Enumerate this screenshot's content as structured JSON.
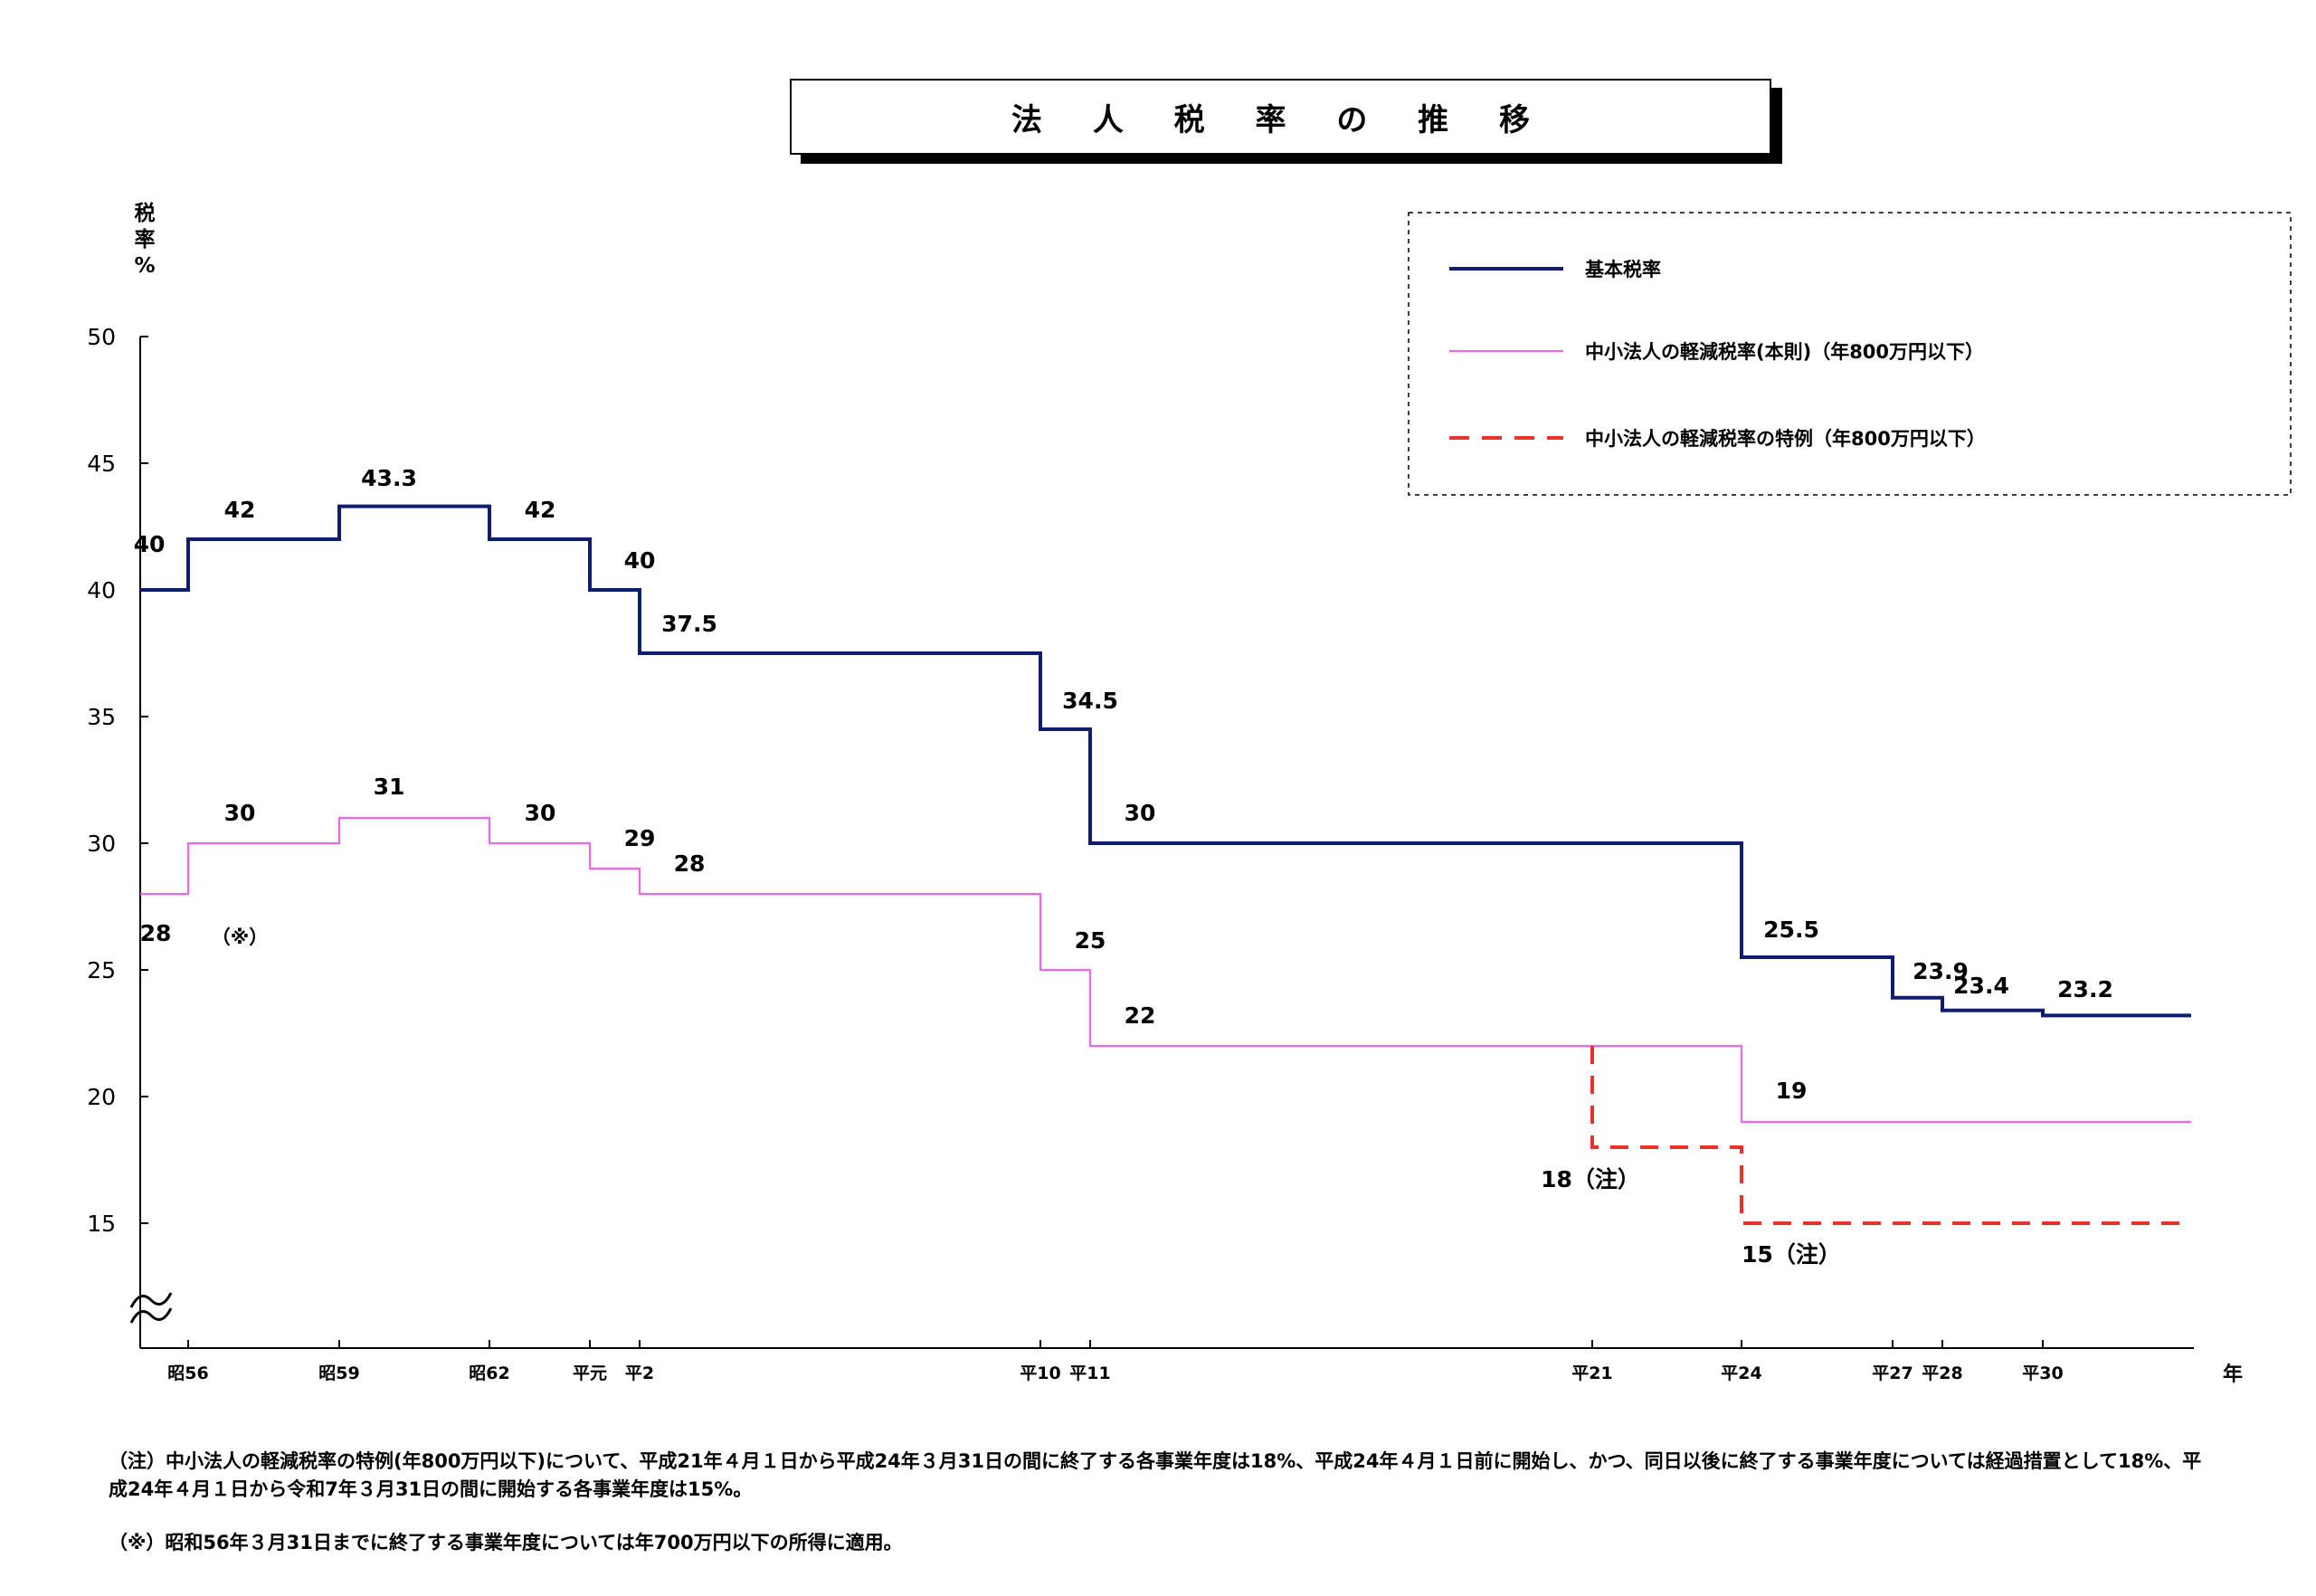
{
  "title": "法 人 税 率 の 推 移",
  "chart_data": {
    "type": "line",
    "step": true,
    "ylabel": "税率%",
    "xlabel": "年",
    "ylim": [
      10,
      50
    ],
    "y_ticks": [
      "50",
      "45",
      "40",
      "35",
      "30",
      "25",
      "20",
      "15"
    ],
    "y_axis_break": true,
    "categories": [
      "昭56",
      "昭59",
      "昭62",
      "平元",
      "平2",
      "平10",
      "平11",
      "平21",
      "平24",
      "平27",
      "平28",
      "平30"
    ],
    "series": [
      {
        "name": "基本税率",
        "color": "#101c6e",
        "style": "solid",
        "points": [
          [
            "",
            40
          ],
          [
            "昭56",
            42
          ],
          [
            "昭59",
            43.3
          ],
          [
            "昭62",
            42
          ],
          [
            "平元",
            40
          ],
          [
            "平2",
            37.5
          ],
          [
            "平10",
            34.5
          ],
          [
            "平11",
            30
          ],
          [
            "平24",
            25.5
          ],
          [
            "平27",
            23.9
          ],
          [
            "平28",
            23.4
          ],
          [
            "平30",
            23.2
          ],
          [
            "",
            23.2
          ]
        ],
        "labels": [
          "40",
          "42",
          "43.3",
          "42",
          "40",
          "37.5",
          "34.5",
          "30",
          "25.5",
          "23.9",
          "23.4",
          "23.2"
        ]
      },
      {
        "name": "中小法人の軽減税率(本則)（年800万円以下）",
        "color": "#ee66ee",
        "style": "solid",
        "points": [
          [
            "",
            28
          ],
          [
            "昭56",
            30
          ],
          [
            "昭59",
            31
          ],
          [
            "昭62",
            30
          ],
          [
            "平元",
            29
          ],
          [
            "平2",
            28
          ],
          [
            "平10",
            25
          ],
          [
            "平11",
            22
          ],
          [
            "平24",
            19
          ],
          [
            "",
            19
          ]
        ],
        "labels": [
          "28",
          "30",
          "31",
          "30",
          "29",
          "28",
          "25",
          "22",
          "19"
        ]
      },
      {
        "name": "中小法人の軽減税率の特例（年800万円以下）",
        "color": "#e8332d",
        "style": "dashed",
        "points": [
          [
            "平21",
            22
          ],
          [
            "平21",
            18
          ],
          [
            "平24",
            15
          ],
          [
            "",
            15
          ]
        ],
        "labels": [
          "18（注）",
          "15（注）"
        ]
      }
    ],
    "annotations": [
      "（※）"
    ],
    "legend_position": "top-right"
  },
  "notes": [
    "（注）中小法人の軽減税率の特例(年800万円以下)について、平成21年４月１日から平成24年３月31日の間に終了する各事業年度は18%、平成24年４月１日前に開始し、かつ、同日以後に終了する事業年度については経過措置として18%、平成24年４月１日から令和7年３月31日の間に開始する各事業年度は15%。",
    "（※）昭和56年３月31日までに終了する事業年度については年700万円以下の所得に適用。"
  ]
}
